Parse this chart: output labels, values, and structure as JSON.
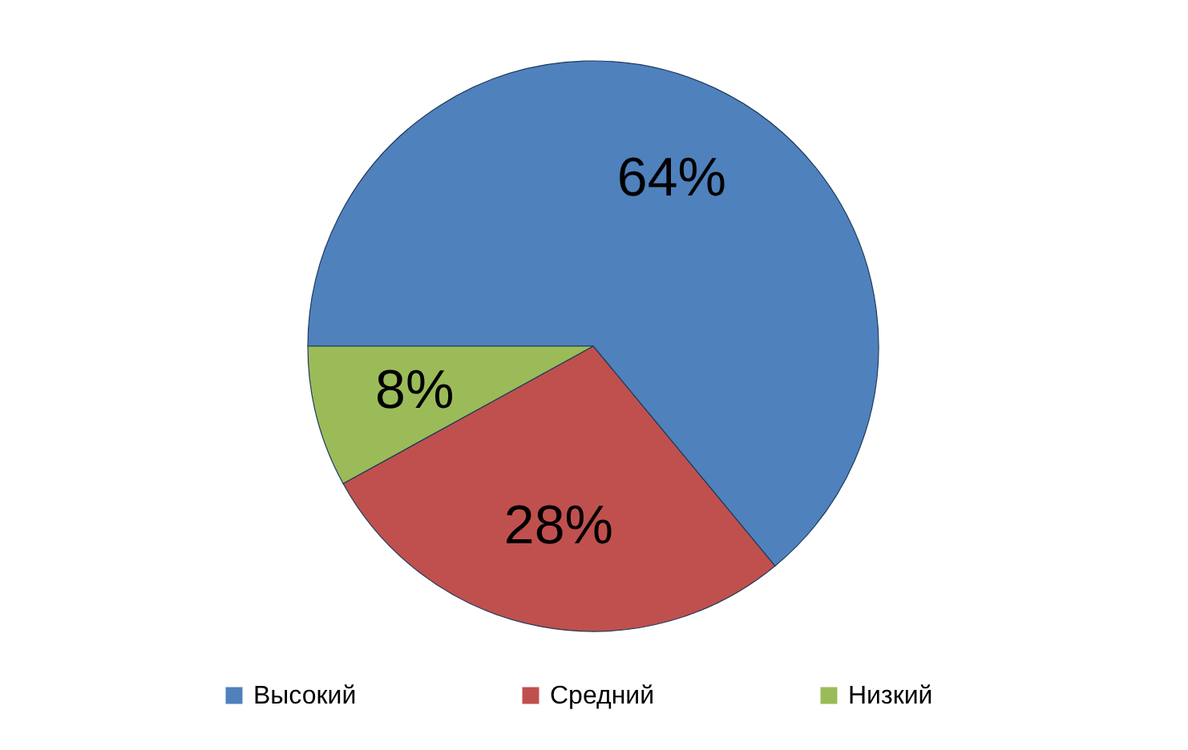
{
  "chart_data": {
    "type": "pie",
    "categories": [
      "Высокий",
      "Средний",
      "Низкий"
    ],
    "values": [
      64,
      28,
      8
    ],
    "value_labels": [
      "64%",
      "28%",
      "8%"
    ],
    "colors": [
      "#4f81bd",
      "#c0504d",
      "#9bbb59"
    ],
    "legend": "bottom"
  }
}
